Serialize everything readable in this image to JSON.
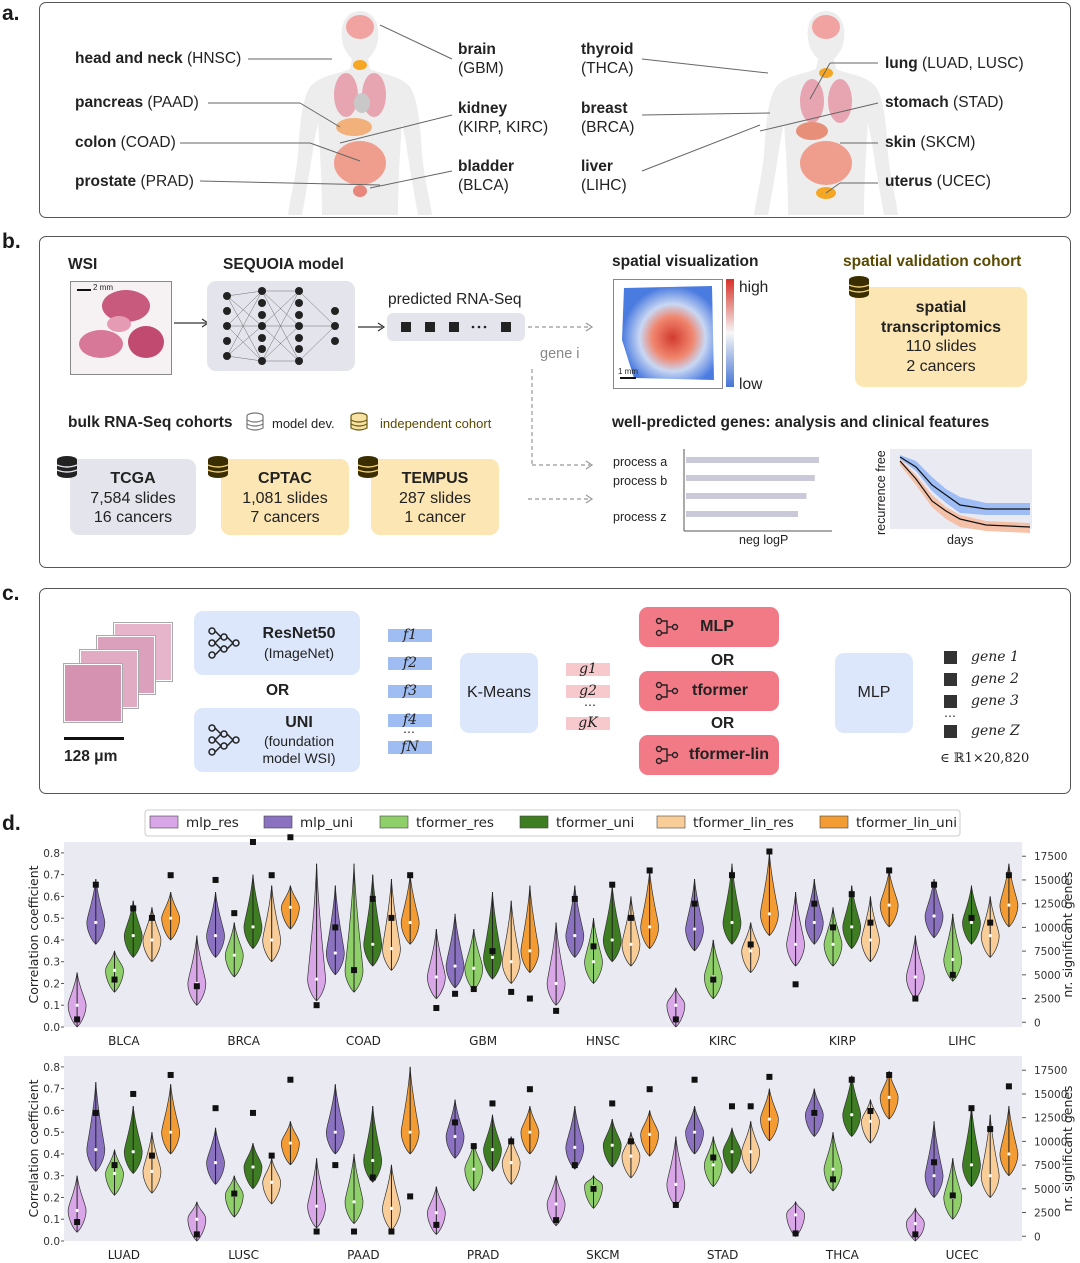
{
  "panel_a": {
    "letter": "a.",
    "left_organs": [
      {
        "bold": "head and neck",
        "rest": " (HNSC)"
      },
      {
        "bold": "pancreas",
        "rest": " (PAAD)"
      },
      {
        "bold": "colon",
        "rest": " (COAD)"
      },
      {
        "bold": "prostate",
        "rest": " (PRAD)"
      }
    ],
    "mid_left_organs": [
      {
        "bold": "brain",
        "rest": "(GBM)"
      },
      {
        "bold": "kidney",
        "rest": "(KIRP, KIRC)"
      },
      {
        "bold": "bladder",
        "rest": "(BLCA)"
      }
    ],
    "mid_right_organs": [
      {
        "bold": "thyroid",
        "rest": "(THCA)"
      },
      {
        "bold": "breast",
        "rest": "(BRCA)"
      },
      {
        "bold": "liver",
        "rest": "(LIHC)"
      }
    ],
    "right_organs": [
      {
        "bold": "lung",
        "rest": " (LUAD, LUSC)"
      },
      {
        "bold": "stomach",
        "rest": " (STAD)"
      },
      {
        "bold": "skin",
        "rest": " (SKCM)"
      },
      {
        "bold": "uterus",
        "rest": " (UCEC)"
      }
    ]
  },
  "panel_b": {
    "letter": "b.",
    "wsi_label": "WSI",
    "wsi_scale": "2 mm",
    "model_label": "SEQUOIA model",
    "predicted_label": "predicted RNA-Seq",
    "gene_i": "gene i",
    "spatial_title": "spatial visualization",
    "spatial_high": "high",
    "spatial_low": "low",
    "spatial_scale": "1 mm",
    "validation_title": "spatial validation cohort",
    "validation_card": {
      "title": "spatial transcriptomics",
      "line1": "110 slides",
      "line2": "2 cancers"
    },
    "bulk_title": "bulk RNA-Seq cohorts",
    "legend_model_dev": "model dev.",
    "legend_independent": "independent cohort",
    "cohorts": [
      {
        "title": "TCGA",
        "line1": "7,584 slides",
        "line2": "16 cancers"
      },
      {
        "title": "CPTAC",
        "line1": "1,081 slides",
        "line2": "7 cancers"
      },
      {
        "title": "TEMPUS",
        "line1": "287 slides",
        "line2": "1 cancer"
      }
    ],
    "well_predicted_title": "well-predicted genes: analysis and clinical features",
    "processes": [
      "process a",
      "process b",
      "process z"
    ],
    "process_values": [
      0.95,
      0.92,
      0.86,
      0.8
    ],
    "neglogp_label": "neg logP",
    "km_ylabel": "recurrence free",
    "km_xlabel": "days"
  },
  "panel_c": {
    "letter": "c.",
    "patch_scale": "128 μm",
    "resnet_title": "ResNet50",
    "resnet_sub": "(ImageNet)",
    "or": "OR",
    "uni_title": "UNI",
    "uni_sub1": "(foundation",
    "uni_sub2": "model WSI)",
    "features": [
      "f1",
      "f2",
      "f3",
      "f4",
      "fN"
    ],
    "kmeans": "K-Means",
    "clusters": [
      "g1",
      "g2",
      "gK"
    ],
    "models": [
      "MLP",
      "tformer",
      "tformer-lin"
    ],
    "mlp_out": "MLP",
    "genes": [
      "gene 1",
      "gene 2",
      "gene 3",
      "gene Z"
    ],
    "output_space": "∈ ℝ1×20,820"
  },
  "panel_d": {
    "letter": "d."
  },
  "colors": {
    "mlp_res": "#d9a6e8",
    "mlp_uni": "#8b72c0",
    "tformer_res": "#8fcf6a",
    "tformer_uni": "#3e7d22",
    "tformer_lin_res": "#f8cd97",
    "tformer_lin_uni": "#f39c34"
  },
  "chart_data": [
    {
      "type": "violin",
      "legend": [
        "mlp_res",
        "mlp_uni",
        "tformer_res",
        "tformer_uni",
        "tformer_lin_res",
        "tformer_lin_uni"
      ],
      "ylabel": "Correlation coefficient",
      "y2label": "nr. significant genes",
      "ylim": [
        0,
        0.85
      ],
      "yticks": [
        0.0,
        0.1,
        0.2,
        0.3,
        0.4,
        0.5,
        0.6,
        0.7,
        0.8
      ],
      "y2lim": [
        -500,
        19000
      ],
      "y2ticks": [
        0,
        2500,
        5000,
        7500,
        10000,
        12500,
        15000,
        17500
      ],
      "categories": [
        "BLCA",
        "BRCA",
        "COAD",
        "GBM",
        "HNSC",
        "KIRC",
        "KIRP",
        "LIHC"
      ],
      "median": [
        [
          0.1,
          0.48,
          0.26,
          0.42,
          0.4,
          0.5
        ],
        [
          0.2,
          0.42,
          0.33,
          0.46,
          0.4,
          0.55
        ],
        [
          0.22,
          0.34,
          0.26,
          0.38,
          0.36,
          0.48
        ],
        [
          0.23,
          0.28,
          0.27,
          0.32,
          0.3,
          0.35
        ],
        [
          0.2,
          0.42,
          0.3,
          0.4,
          0.38,
          0.46
        ],
        [
          0.1,
          0.45,
          0.23,
          0.48,
          0.35,
          0.52
        ],
        [
          0.38,
          0.48,
          0.38,
          0.46,
          0.4,
          0.56
        ],
        [
          0.23,
          0.51,
          0.31,
          0.48,
          0.42,
          0.56
        ]
      ],
      "max": [
        [
          0.25,
          0.68,
          0.35,
          0.58,
          0.55,
          0.62
        ],
        [
          0.42,
          0.62,
          0.48,
          0.7,
          0.65,
          0.65
        ],
        [
          0.75,
          0.65,
          0.75,
          0.7,
          0.68,
          0.7
        ],
        [
          0.45,
          0.52,
          0.45,
          0.62,
          0.58,
          0.65
        ],
        [
          0.48,
          0.65,
          0.5,
          0.65,
          0.6,
          0.72
        ],
        [
          0.18,
          0.68,
          0.4,
          0.75,
          0.48,
          0.8
        ],
        [
          0.62,
          0.68,
          0.55,
          0.65,
          0.6,
          0.72
        ],
        [
          0.42,
          0.68,
          0.52,
          0.65,
          0.6,
          0.75
        ]
      ],
      "sig_genes": [
        [
          300,
          14500,
          4500,
          12000,
          11000,
          15500
        ],
        [
          3800,
          15000,
          11500,
          19000,
          15500,
          19500
        ],
        [
          1800,
          10000,
          5500,
          13000,
          11000,
          15500
        ],
        [
          1500,
          3000,
          3500,
          7500,
          3200,
          2500
        ],
        [
          1200,
          13000,
          8000,
          14500,
          11000,
          16000
        ],
        [
          300,
          12500,
          4500,
          15500,
          8200,
          18000
        ],
        [
          4000,
          12500,
          10000,
          13500,
          10500,
          16000
        ],
        [
          2500,
          14500,
          5000,
          11000,
          10500,
          15500
        ]
      ]
    },
    {
      "type": "violin",
      "ylabel": "Correlation coefficient",
      "y2label": "nr. significant genes",
      "ylim": [
        0,
        0.85
      ],
      "yticks": [
        0.0,
        0.1,
        0.2,
        0.3,
        0.4,
        0.5,
        0.6,
        0.7,
        0.8
      ],
      "y2lim": [
        -500,
        19000
      ],
      "y2ticks": [
        0,
        2500,
        5000,
        7500,
        10000,
        12500,
        15000,
        17500
      ],
      "categories": [
        "LUAD",
        "LUSC",
        "PAAD",
        "PRAD",
        "SKCM",
        "STAD",
        "THCA",
        "UCEC"
      ],
      "median": [
        [
          0.14,
          0.42,
          0.31,
          0.41,
          0.32,
          0.5
        ],
        [
          0.1,
          0.36,
          0.21,
          0.34,
          0.27,
          0.45
        ],
        [
          0.16,
          0.5,
          0.18,
          0.37,
          0.15,
          0.5
        ],
        [
          0.13,
          0.48,
          0.33,
          0.42,
          0.36,
          0.5
        ],
        [
          0.17,
          0.43,
          0.25,
          0.44,
          0.39,
          0.49
        ],
        [
          0.26,
          0.5,
          0.35,
          0.41,
          0.41,
          0.56
        ],
        [
          0.12,
          0.58,
          0.33,
          0.58,
          0.55,
          0.66
        ],
        [
          0.08,
          0.3,
          0.2,
          0.35,
          0.3,
          0.4
        ]
      ],
      "max": [
        [
          0.3,
          0.73,
          0.42,
          0.62,
          0.5,
          0.72
        ],
        [
          0.18,
          0.52,
          0.3,
          0.45,
          0.38,
          0.55
        ],
        [
          0.38,
          0.72,
          0.4,
          0.62,
          0.35,
          0.8
        ],
        [
          0.25,
          0.65,
          0.45,
          0.58,
          0.48,
          0.62
        ],
        [
          0.3,
          0.62,
          0.3,
          0.56,
          0.5,
          0.6
        ],
        [
          0.48,
          0.62,
          0.48,
          0.52,
          0.55,
          0.7
        ],
        [
          0.18,
          0.7,
          0.5,
          0.76,
          0.65,
          0.78
        ],
        [
          0.15,
          0.55,
          0.38,
          0.62,
          0.58,
          0.62
        ]
      ],
      "sig_genes": [
        [
          1500,
          13000,
          7500,
          15000,
          8500,
          17000
        ],
        [
          200,
          13500,
          4500,
          13000,
          8500,
          16500
        ],
        [
          500,
          7500,
          500,
          6200,
          500,
          4200
        ],
        [
          1200,
          12000,
          9500,
          14000,
          10000,
          15500
        ],
        [
          1700,
          7500,
          5000,
          14000,
          10000,
          15500
        ],
        [
          3300,
          16500,
          8300,
          13700,
          13700,
          16800
        ],
        [
          300,
          13000,
          6000,
          16500,
          13200,
          17000
        ],
        [
          200,
          7800,
          4300,
          13500,
          11300,
          15800
        ]
      ]
    }
  ]
}
